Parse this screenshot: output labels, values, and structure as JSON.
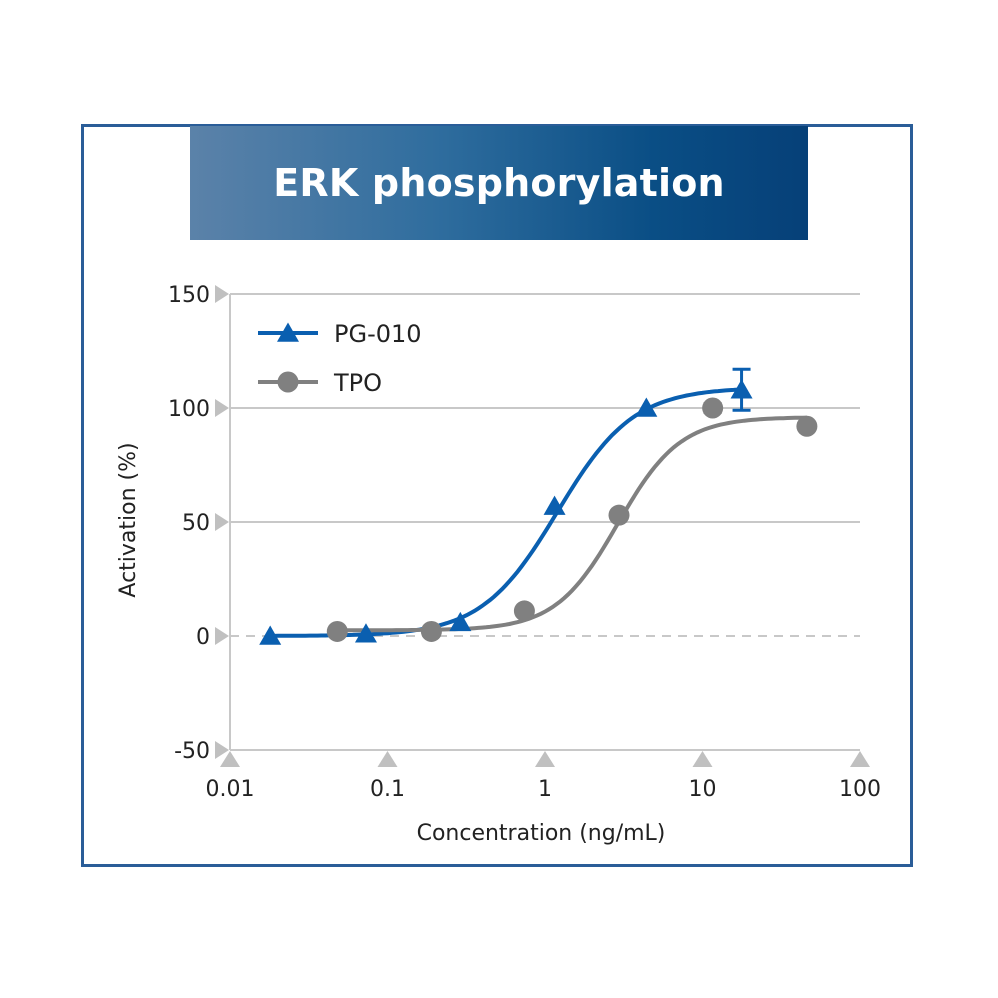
{
  "title": "ERK phosphorylation",
  "colors": {
    "frame": "#2a5d98",
    "banner_start": "#5b82a9",
    "banner_end": "#064078",
    "pg010": "#0a5fb0",
    "tpo": "#808080",
    "grid": "#c8c8c8",
    "tick_marker": "#c0c0c0"
  },
  "chart_data": {
    "type": "scatter",
    "title": "ERK phosphorylation",
    "xlabel": "Concentration (ng/mL)",
    "ylabel": "Activation (%)",
    "xscale": "log",
    "xlim": [
      0.01,
      100
    ],
    "ylim": [
      -50,
      150
    ],
    "xticks": [
      "0.01",
      "0.1",
      "1",
      "10",
      "100"
    ],
    "yticks": [
      "150",
      "100",
      "50",
      "0",
      "-50"
    ],
    "grid": "horizontal",
    "reference_line": {
      "y": 0,
      "style": "dashed"
    },
    "legend_position": "upper-left",
    "series": [
      {
        "name": "PG-010",
        "marker": "triangle",
        "color": "#0a5fb0",
        "x": [
          0.018,
          0.073,
          0.29,
          1.15,
          4.4,
          17.7
        ],
        "y": [
          0,
          1,
          6,
          57,
          100,
          108
        ],
        "error": [
          0,
          0,
          0,
          0,
          0,
          9
        ],
        "fit": "sigmoidal",
        "fit_params": {
          "bottom": 0,
          "top": 109,
          "ec50": 1.2,
          "hill": 1.8
        }
      },
      {
        "name": "TPO",
        "marker": "circle",
        "color": "#808080",
        "x": [
          0.048,
          0.19,
          0.74,
          2.95,
          11.6,
          46
        ],
        "y": [
          2,
          2,
          11,
          53,
          100,
          92
        ],
        "error": [
          0,
          0,
          0,
          0,
          2,
          0
        ],
        "fit": "sigmoidal",
        "fit_params": {
          "bottom": 2.5,
          "top": 96,
          "ec50": 2.9,
          "hill": 2.2
        }
      }
    ]
  }
}
